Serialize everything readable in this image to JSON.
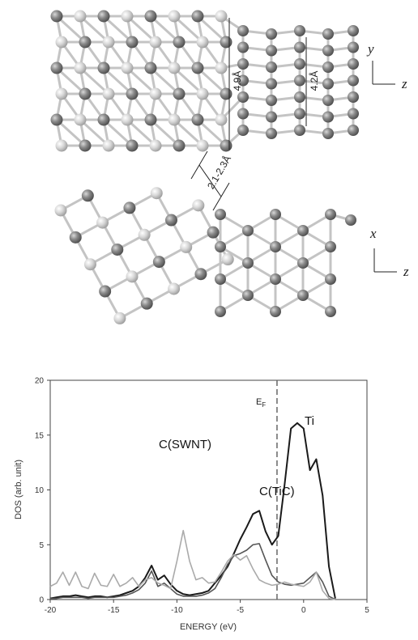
{
  "figure": {
    "top_panel": {
      "dim_tic": "4.9Å",
      "dim_tube": "4.2Å",
      "axis_vertical": "y",
      "axis_horizontal": "z"
    },
    "gap": "2.1-2.3Å",
    "bottom_panel": {
      "axis_vertical": "x",
      "axis_horizontal": "z"
    }
  },
  "chart_data": {
    "type": "line",
    "x_label": "ENERGY (eV)",
    "y_label": "DOS (arb. unit)",
    "fermi_level": -2.1,
    "fermi_label": {
      "main": "E",
      "sub": "F"
    },
    "xlim": [
      -20,
      5
    ],
    "ylim": [
      0,
      20
    ],
    "xticks": [
      -20,
      -15,
      -10,
      -5,
      0,
      5
    ],
    "yticks": [
      0,
      5,
      10,
      15,
      20
    ],
    "x": [
      -20,
      -19.5,
      -19,
      -18.5,
      -18,
      -17.5,
      -17,
      -16.5,
      -16,
      -15.5,
      -15,
      -14.5,
      -14,
      -13.5,
      -13,
      -12.5,
      -12,
      -11.5,
      -11,
      -10.5,
      -10,
      -9.5,
      -9,
      -8.5,
      -8,
      -7.5,
      -7,
      -6.5,
      -6,
      -5.5,
      -5,
      -4.5,
      -4,
      -3.5,
      -3,
      -2.5,
      -2,
      -1.5,
      -1,
      -0.5,
      0,
      0.5,
      1,
      1.5,
      2,
      2.5
    ],
    "series": [
      {
        "name": "Ti",
        "color": "#1a1a1a",
        "values": [
          0.1,
          0.2,
          0.3,
          0.3,
          0.4,
          0.3,
          0.2,
          0.3,
          0.3,
          0.2,
          0.3,
          0.4,
          0.6,
          0.8,
          1.2,
          2.0,
          3.1,
          1.8,
          2.2,
          1.4,
          0.8,
          0.5,
          0.4,
          0.5,
          0.6,
          0.8,
          1.5,
          2.2,
          3.0,
          4.2,
          5.5,
          6.6,
          7.8,
          8.1,
          6.2,
          5.0,
          5.8,
          10.5,
          15.6,
          16.1,
          15.6,
          11.8,
          12.8,
          9.5,
          3.0,
          0.1
        ]
      },
      {
        "name": "C(TiC)",
        "color": "#555555",
        "values": [
          0.1,
          0.1,
          0.2,
          0.2,
          0.2,
          0.2,
          0.1,
          0.2,
          0.2,
          0.2,
          0.2,
          0.3,
          0.4,
          0.6,
          0.9,
          1.5,
          2.6,
          1.2,
          1.5,
          1.0,
          0.5,
          0.3,
          0.3,
          0.3,
          0.4,
          0.6,
          1.0,
          2.0,
          3.2,
          4.0,
          4.2,
          4.5,
          5.0,
          5.1,
          3.6,
          2.2,
          1.6,
          1.4,
          1.3,
          1.4,
          1.5,
          2.0,
          2.5,
          1.6,
          0.3,
          0.0
        ]
      },
      {
        "name": "C(SWNT)",
        "color": "#aaaaaa",
        "values": [
          1.2,
          1.5,
          2.5,
          1.3,
          2.5,
          1.2,
          1.0,
          2.4,
          1.3,
          1.2,
          2.3,
          1.2,
          1.5,
          2.0,
          1.2,
          1.8,
          2.0,
          1.5,
          1.3,
          1.0,
          3.5,
          6.3,
          3.5,
          1.8,
          2.0,
          1.5,
          1.6,
          2.5,
          3.5,
          4.1,
          3.6,
          4.0,
          2.8,
          1.8,
          1.5,
          1.3,
          1.4,
          1.6,
          1.4,
          1.3,
          1.2,
          1.6,
          2.5,
          0.8,
          0.1,
          0.0
        ]
      }
    ]
  }
}
